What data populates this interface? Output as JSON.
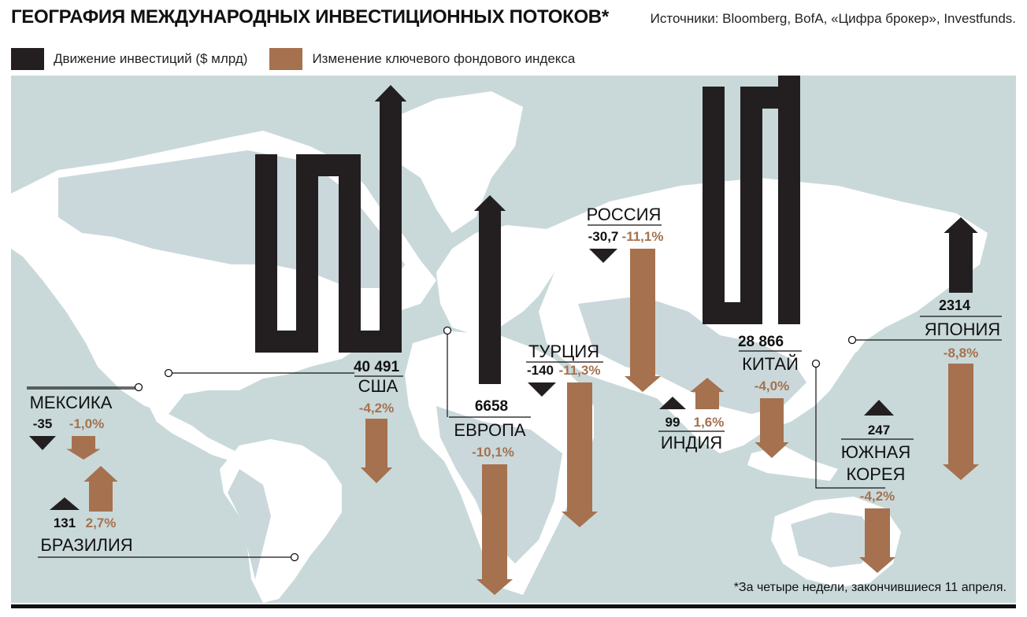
{
  "title": "ГЕОГРАФИЯ МЕЖДУНАРОДНЫХ ИНВЕСТИЦИОННЫХ ПОТОКОВ*",
  "source": "Источники: Bloomberg, BofA, «Цифра брокер», Investfunds.",
  "legend": {
    "invest": "Движение инвестиций  ($ млрд)",
    "index": "Изменение ключевого фондового индекса"
  },
  "footnote": "*За четыре недели, закончившиеся 11 апреля.",
  "colors": {
    "invest": "#231f20",
    "index": "#a6714e",
    "sea": "#c9d9da",
    "land": "#ffffff",
    "land_shade": "#9fb8bf"
  },
  "chart_data": {
    "type": "bar",
    "categories": [
      "США",
      "МЕКСИКА",
      "БРАЗИЛИЯ",
      "ЕВРОПА",
      "ТУРЦИЯ",
      "РОССИЯ",
      "ИНДИЯ",
      "КИТАЙ",
      "ЮЖНАЯ КОРЕЯ",
      "ЯПОНИЯ"
    ],
    "series": [
      {
        "name": "Движение инвестиций  ($ млрд)",
        "values": [
          40491,
          -35,
          131,
          6658,
          -140,
          -30.7,
          99,
          28866,
          247,
          2314
        ],
        "labels": [
          "40 491",
          "-35",
          "131",
          "6658",
          "-140",
          "-30,7",
          "99",
          "28 866",
          "247",
          "2314"
        ]
      },
      {
        "name": "Изменение ключевого фондового индекса",
        "values": [
          -4.2,
          -1.0,
          2.7,
          -10.1,
          -11.3,
          -11.1,
          1.6,
          -4.0,
          -4.2,
          -8.8
        ],
        "labels": [
          "-4,2%",
          "-1,0%",
          "2,7%",
          "-10,1%",
          "-11,3%",
          "-11,1%",
          "1,6%",
          "-4,0%",
          "-4,2%",
          "-8,8%"
        ]
      }
    ]
  }
}
